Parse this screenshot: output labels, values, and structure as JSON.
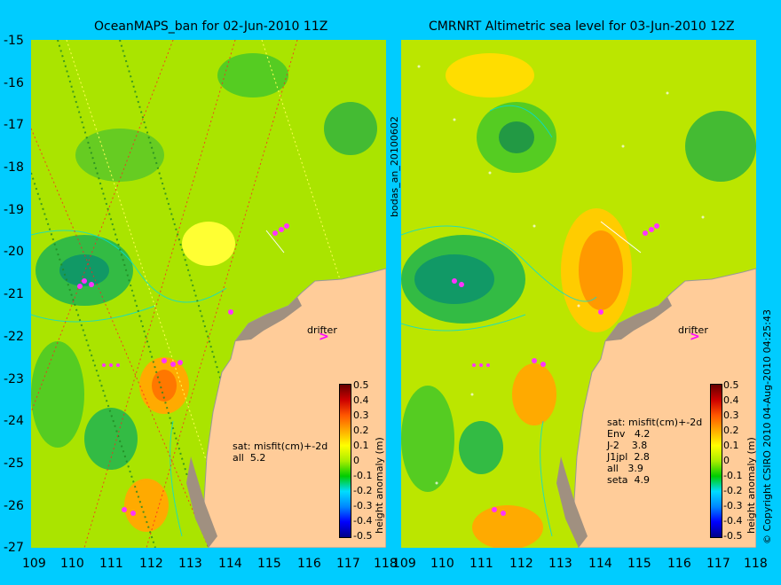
{
  "left_panel": {
    "title": "OceanMAPS_ban for 02-Jun-2010 11Z",
    "stats": "sat: misfit(cm)+-2d\nall  5.2",
    "drifter": "drifter"
  },
  "right_panel": {
    "title": "CMRNRT Altimetric sea level  for 03-Jun-2010 12Z",
    "stats": "sat: misfit(cm)+-2d\nEnv   4.2\nJ-2    3.8\nJ1jpl  2.8\nall   3.9\nseta  4.9",
    "drifter": "drifter"
  },
  "y_ticks": [
    "-15",
    "-16",
    "-17",
    "-18",
    "-19",
    "-20",
    "-21",
    "-22",
    "-23",
    "-24",
    "-25",
    "-26",
    "-27"
  ],
  "x_ticks": [
    "109",
    "110",
    "111",
    "112",
    "113",
    "114",
    "115",
    "116",
    "117",
    "118"
  ],
  "side_label": "bodas_an_20100602",
  "colorbar": {
    "ticks": [
      "0.5",
      "0.4",
      "0.3",
      "0.2",
      "0.1",
      "0",
      "-0.1",
      "-0.2",
      "-0.3",
      "-0.4",
      "-0.5"
    ],
    "label": "height anomaly (m)"
  },
  "copyright": "© Copyright CSIRO 2010  04-Aug-2010 04:25:43",
  "colors": {
    "background": "#00CCFF",
    "land": "#FFCC99",
    "sea": "#AAE400"
  }
}
